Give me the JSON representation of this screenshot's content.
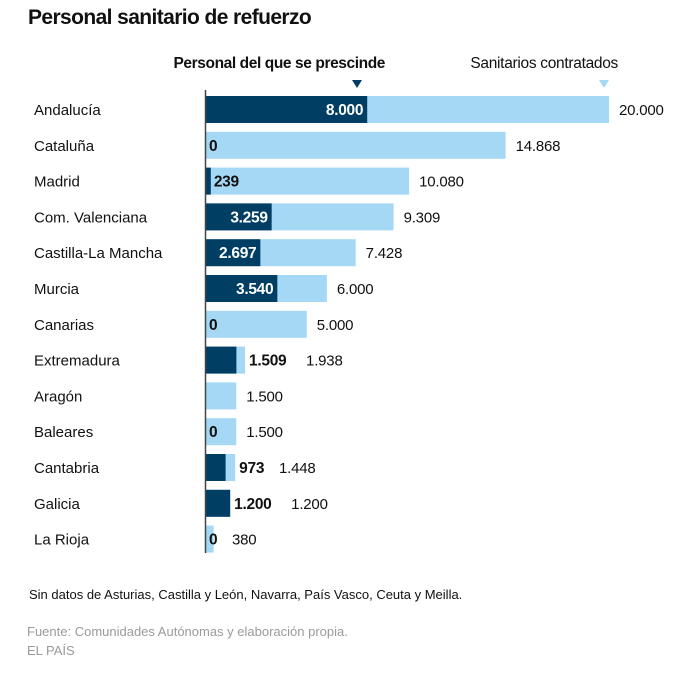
{
  "colors": {
    "dismissed": "#003f63",
    "hired": "#a4d8f5",
    "axis": "#444444",
    "text": "#111111",
    "muted": "#9a9a9a"
  },
  "chart_data": {
    "type": "bar",
    "orientation": "horizontal",
    "title": "Personal sanitario de refuerzo",
    "xlabel": "",
    "ylabel": "",
    "xlim": [
      0,
      20000
    ],
    "legend_position": "top",
    "categories": [
      "Andalucía",
      "Cataluña",
      "Madrid",
      "Com. Valenciana",
      "Castilla-La Mancha",
      "Murcia",
      "Canarias",
      "Extremadura",
      "Aragón",
      "Baleares",
      "Cantabria",
      "Galicia",
      "La Rioja"
    ],
    "series": [
      {
        "name": "Sanitarios contratados",
        "values": [
          20000,
          14868,
          10080,
          9309,
          7428,
          6000,
          5000,
          1938,
          1500,
          1500,
          1448,
          1200,
          380
        ],
        "labels": [
          "20.000",
          "14.868",
          "10.080",
          "9.309",
          "7.428",
          "6.000",
          "5.000",
          "1.938",
          "1.500",
          "1.500",
          "1.448",
          "1.200",
          "380"
        ]
      },
      {
        "name": "Personal del que se prescinde",
        "values": [
          8000,
          0,
          239,
          3259,
          2697,
          3540,
          0,
          1509,
          null,
          0,
          973,
          1200,
          0
        ],
        "labels": [
          "8.000",
          "0",
          "239",
          "3.259",
          "2.697",
          "3.540",
          "0",
          "1.509",
          "",
          "0",
          "973",
          "1.200",
          "0"
        ]
      }
    ]
  },
  "legend": {
    "dismissed_label": "Personal del que se prescinde",
    "hired_label": "Sanitarios contratados"
  },
  "footer": {
    "note": "Sin datos de Asturias, Castilla y León, Navarra, País Vasco, Ceuta y Meilla.",
    "source": "Fuente: Comunidades Autónomas y elaboración propia.",
    "brand": "EL PAÍS"
  }
}
